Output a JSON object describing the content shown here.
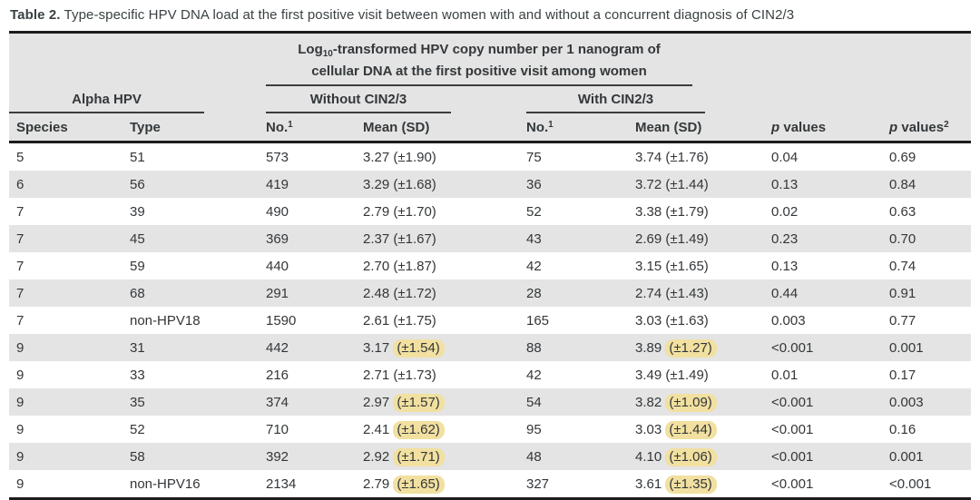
{
  "title": {
    "label": "Table 2.",
    "text": "Type-specific HPV DNA load at the first positive visit between women with and without a concurrent diagnosis of CIN2/3"
  },
  "header": {
    "span_top": {
      "prefix": "Log",
      "sub": "10",
      "rest": "-transformed HPV copy number per 1 nanogram of",
      "line2": "cellular DNA at the first positive visit among women"
    },
    "group_alpha": "Alpha HPV",
    "group_without": "Without CIN2/3",
    "group_with": "With CIN2/3",
    "col_species": "Species",
    "col_type": "Type",
    "col_no": {
      "text": "No.",
      "sup": "1"
    },
    "col_mean": "Mean (SD)",
    "col_p1": {
      "p": "p",
      "rest": " values"
    },
    "col_p2": {
      "p": "p",
      "rest": " values",
      "sup": "2"
    }
  },
  "colors": {
    "header_bg": "#e4e4e4",
    "row_alt_bg": "#e4e4e4",
    "highlight": "#f1e0a0",
    "border": "#1c1c1c"
  },
  "rows": [
    {
      "species": "5",
      "type": "51",
      "no_without": "573",
      "mean_without": "3.27",
      "sd_without": "(±1.90)",
      "hl_without": false,
      "no_with": "75",
      "mean_with": "3.74",
      "sd_with": "(±1.76)",
      "hl_with": false,
      "p1": "0.04",
      "p2": "0.69"
    },
    {
      "species": "6",
      "type": "56",
      "no_without": "419",
      "mean_without": "3.29",
      "sd_without": "(±1.68)",
      "hl_without": false,
      "no_with": "36",
      "mean_with": "3.72",
      "sd_with": "(±1.44)",
      "hl_with": false,
      "p1": "0.13",
      "p2": "0.84"
    },
    {
      "species": "7",
      "type": "39",
      "no_without": "490",
      "mean_without": "2.79",
      "sd_without": "(±1.70)",
      "hl_without": false,
      "no_with": "52",
      "mean_with": "3.38",
      "sd_with": "(±1.79)",
      "hl_with": false,
      "p1": "0.02",
      "p2": "0.63"
    },
    {
      "species": "7",
      "type": "45",
      "no_without": "369",
      "mean_without": "2.37",
      "sd_without": "(±1.67)",
      "hl_without": false,
      "no_with": "43",
      "mean_with": "2.69",
      "sd_with": "(±1.49)",
      "hl_with": false,
      "p1": "0.23",
      "p2": "0.70"
    },
    {
      "species": "7",
      "type": "59",
      "no_without": "440",
      "mean_without": "2.70",
      "sd_without": "(±1.87)",
      "hl_without": false,
      "no_with": "42",
      "mean_with": "3.15",
      "sd_with": "(±1.65)",
      "hl_with": false,
      "p1": "0.13",
      "p2": "0.74"
    },
    {
      "species": "7",
      "type": "68",
      "no_without": "291",
      "mean_without": "2.48",
      "sd_without": "(±1.72)",
      "hl_without": false,
      "no_with": "28",
      "mean_with": "2.74",
      "sd_with": "(±1.43)",
      "hl_with": false,
      "p1": "0.44",
      "p2": "0.91"
    },
    {
      "species": "7",
      "type": "non-HPV18",
      "no_without": "1590",
      "mean_without": "2.61",
      "sd_without": "(±1.75)",
      "hl_without": false,
      "no_with": "165",
      "mean_with": "3.03",
      "sd_with": "(±1.63)",
      "hl_with": false,
      "p1": "0.003",
      "p2": "0.77"
    },
    {
      "species": "9",
      "type": "31",
      "no_without": "442",
      "mean_without": "3.17",
      "sd_without": "(±1.54)",
      "hl_without": true,
      "no_with": "88",
      "mean_with": "3.89",
      "sd_with": "(±1.27)",
      "hl_with": true,
      "p1": "<0.001",
      "p2": "0.001"
    },
    {
      "species": "9",
      "type": "33",
      "no_without": "216",
      "mean_without": "2.71",
      "sd_without": "(±1.73)",
      "hl_without": false,
      "no_with": "42",
      "mean_with": "3.49",
      "sd_with": "(±1.49)",
      "hl_with": false,
      "p1": "0.01",
      "p2": "0.17"
    },
    {
      "species": "9",
      "type": "35",
      "no_without": "374",
      "mean_without": "2.97",
      "sd_without": "(±1.57)",
      "hl_without": true,
      "no_with": "54",
      "mean_with": "3.82",
      "sd_with": "(±1.09)",
      "hl_with": true,
      "p1": "<0.001",
      "p2": "0.003"
    },
    {
      "species": "9",
      "type": "52",
      "no_without": "710",
      "mean_without": "2.41",
      "sd_without": "(±1.62)",
      "hl_without": true,
      "no_with": "95",
      "mean_with": "3.03",
      "sd_with": "(±1.44)",
      "hl_with": true,
      "p1": "<0.001",
      "p2": "0.16"
    },
    {
      "species": "9",
      "type": "58",
      "no_without": "392",
      "mean_without": "2.92",
      "sd_without": "(±1.71)",
      "hl_without": true,
      "no_with": "48",
      "mean_with": "4.10",
      "sd_with": "(±1.06)",
      "hl_with": true,
      "p1": "<0.001",
      "p2": "0.001"
    },
    {
      "species": "9",
      "type": "non-HPV16",
      "no_without": "2134",
      "mean_without": "2.79",
      "sd_without": "(±1.65)",
      "hl_without": true,
      "no_with": "327",
      "mean_with": "3.61",
      "sd_with": "(±1.35)",
      "hl_with": true,
      "p1": "<0.001",
      "p2": "<0.001"
    }
  ]
}
